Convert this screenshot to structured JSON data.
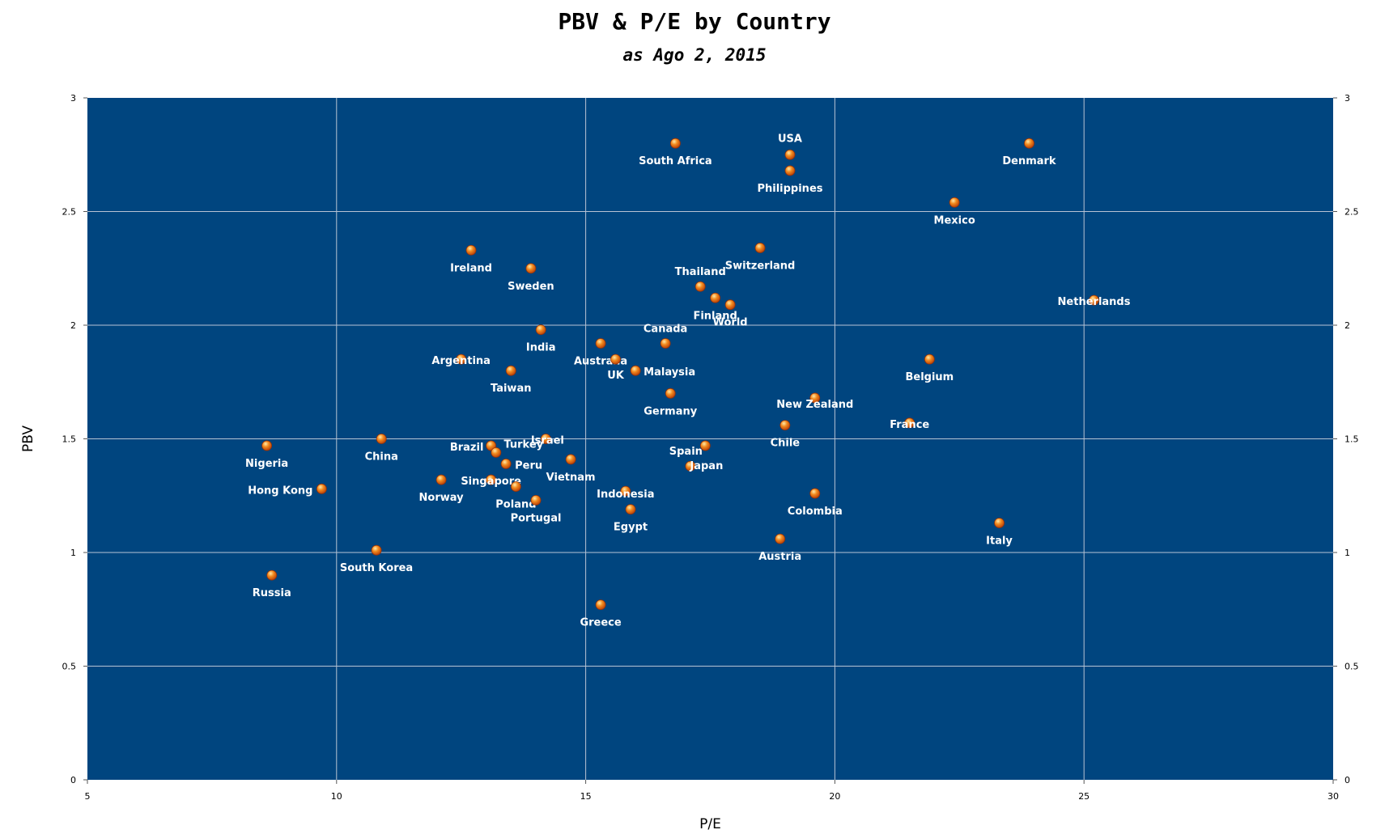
{
  "chart_data": {
    "type": "scatter",
    "title": "PBV & P/E by Country",
    "subtitle": "as Ago 2, 2015",
    "xlabel": "P/E",
    "ylabel": "PBV",
    "xlim": [
      5,
      30
    ],
    "ylim": [
      0,
      3
    ],
    "xticks": [
      5,
      10,
      15,
      20,
      25,
      30
    ],
    "yticks": [
      0,
      0.5,
      1,
      1.5,
      2,
      2.5,
      3
    ],
    "grid": true,
    "legend": "none",
    "colors": {
      "background": "#00457F",
      "grid": "#B8C3D4",
      "marker": "#F28A1E",
      "label": "#FFFFFF"
    },
    "points": [
      {
        "name": "South Africa",
        "x": 16.8,
        "y": 2.8
      },
      {
        "name": "USA",
        "x": 19.1,
        "y": 2.75
      },
      {
        "name": "Philippines",
        "x": 19.1,
        "y": 2.68
      },
      {
        "name": "Denmark",
        "x": 23.9,
        "y": 2.8
      },
      {
        "name": "Mexico",
        "x": 22.4,
        "y": 2.54
      },
      {
        "name": "Ireland",
        "x": 12.7,
        "y": 2.33
      },
      {
        "name": "Sweden",
        "x": 13.9,
        "y": 2.25
      },
      {
        "name": "Switzerland",
        "x": 18.5,
        "y": 2.34
      },
      {
        "name": "Thailand",
        "x": 17.3,
        "y": 2.17
      },
      {
        "name": "Finland",
        "x": 17.6,
        "y": 2.12
      },
      {
        "name": "World",
        "x": 17.9,
        "y": 2.09
      },
      {
        "name": "Netherlands",
        "x": 25.2,
        "y": 2.11
      },
      {
        "name": "India",
        "x": 14.1,
        "y": 1.98
      },
      {
        "name": "Canada",
        "x": 16.6,
        "y": 1.92
      },
      {
        "name": "Australia",
        "x": 15.3,
        "y": 1.92
      },
      {
        "name": "Argentina",
        "x": 12.5,
        "y": 1.85
      },
      {
        "name": "UK",
        "x": 15.6,
        "y": 1.85
      },
      {
        "name": "Malaysia",
        "x": 16.0,
        "y": 1.8
      },
      {
        "name": "Taiwan",
        "x": 13.5,
        "y": 1.8
      },
      {
        "name": "Belgium",
        "x": 21.9,
        "y": 1.85
      },
      {
        "name": "Germany",
        "x": 16.7,
        "y": 1.7
      },
      {
        "name": "New Zealand",
        "x": 19.6,
        "y": 1.68
      },
      {
        "name": "Chile",
        "x": 19.0,
        "y": 1.56
      },
      {
        "name": "France",
        "x": 21.5,
        "y": 1.57
      },
      {
        "name": "Nigeria",
        "x": 8.6,
        "y": 1.47
      },
      {
        "name": "China",
        "x": 10.9,
        "y": 1.5
      },
      {
        "name": "Israel",
        "x": 14.2,
        "y": 1.5
      },
      {
        "name": "Brazil",
        "x": 13.1,
        "y": 1.47
      },
      {
        "name": "Turkey",
        "x": 13.2,
        "y": 1.44
      },
      {
        "name": "Peru",
        "x": 13.4,
        "y": 1.39
      },
      {
        "name": "Vietnam",
        "x": 14.7,
        "y": 1.41
      },
      {
        "name": "Spain",
        "x": 17.4,
        "y": 1.47
      },
      {
        "name": "Japan",
        "x": 17.1,
        "y": 1.38
      },
      {
        "name": "Hong Kong",
        "x": 9.7,
        "y": 1.28
      },
      {
        "name": "Norway",
        "x": 12.1,
        "y": 1.32
      },
      {
        "name": "Singapore",
        "x": 13.1,
        "y": 1.32
      },
      {
        "name": "Poland",
        "x": 13.6,
        "y": 1.29
      },
      {
        "name": "Portugal",
        "x": 14.0,
        "y": 1.23
      },
      {
        "name": "Indonesia",
        "x": 15.8,
        "y": 1.27
      },
      {
        "name": "Egypt",
        "x": 15.9,
        "y": 1.19
      },
      {
        "name": "Colombia",
        "x": 19.6,
        "y": 1.26
      },
      {
        "name": "Italy",
        "x": 23.3,
        "y": 1.13
      },
      {
        "name": "Austria",
        "x": 18.9,
        "y": 1.06
      },
      {
        "name": "South Korea",
        "x": 10.8,
        "y": 1.01
      },
      {
        "name": "Russia",
        "x": 8.7,
        "y": 0.9
      },
      {
        "name": "Greece",
        "x": 15.3,
        "y": 0.77
      }
    ]
  }
}
